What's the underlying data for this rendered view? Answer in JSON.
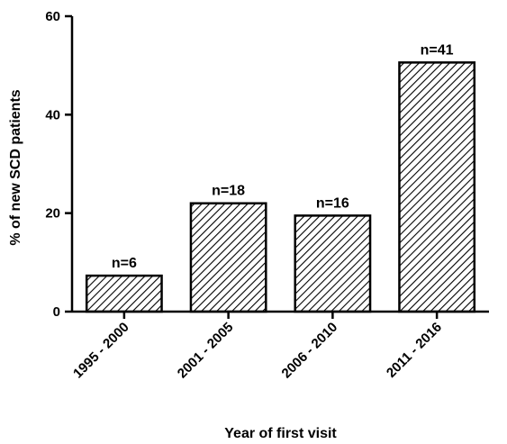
{
  "chart_data": {
    "type": "bar",
    "title": "",
    "xlabel": "Year of first visit",
    "ylabel": "% of new SCD patients",
    "ylim": [
      0,
      60
    ],
    "yticks": [
      0,
      20,
      40,
      60
    ],
    "categories": [
      "1995 - 2000",
      "2001 - 2005",
      "2006 - 2010",
      "2011 - 2016"
    ],
    "values": [
      7.3,
      22.0,
      19.5,
      50.6
    ],
    "data_labels": [
      "n=6",
      "n=18",
      "n=16",
      "n=41"
    ],
    "bar_fill": "diagonal-hatch",
    "bar_color": "#000000",
    "grid": false,
    "legend": "none"
  }
}
